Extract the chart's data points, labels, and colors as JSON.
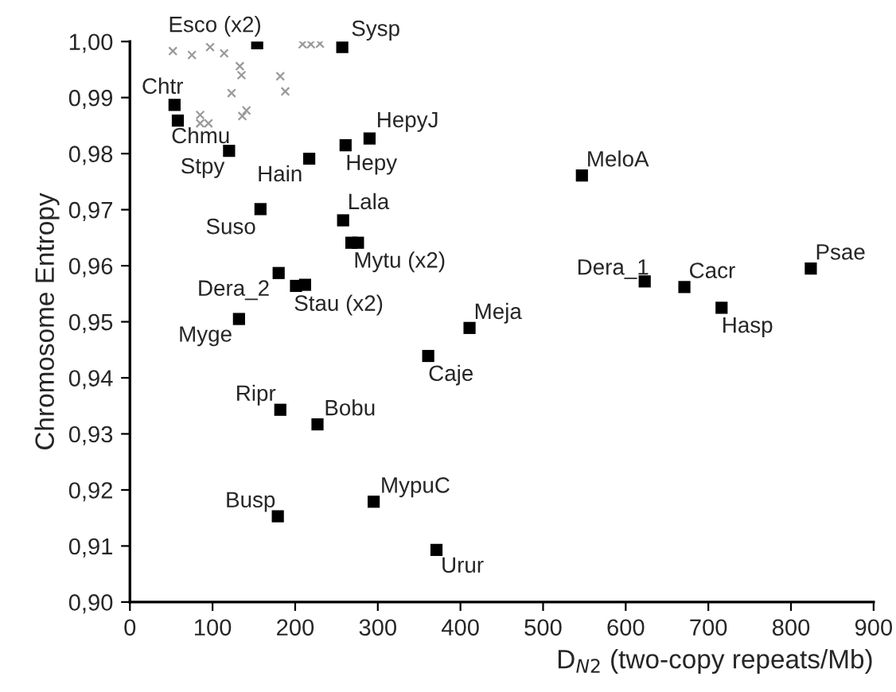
{
  "chart_data": {
    "type": "scatter",
    "xlabel": "D$_{N2}$ (two-copy repeats/Mb)",
    "ylabel": "Chromosome Entropy",
    "xlim": [
      0,
      900
    ],
    "xticks": [
      0,
      100,
      200,
      300,
      400,
      500,
      600,
      700,
      800,
      900
    ],
    "ylim": [
      0.9,
      1.0
    ],
    "yticks": [
      {
        "value": 0.9,
        "label": "0,90"
      },
      {
        "value": 0.91,
        "label": "0,91"
      },
      {
        "value": 0.92,
        "label": "0,92"
      },
      {
        "value": 0.93,
        "label": "0,93"
      },
      {
        "value": 0.94,
        "label": "0,94"
      },
      {
        "value": 0.95,
        "label": "0,95"
      },
      {
        "value": 0.96,
        "label": "0,96"
      },
      {
        "value": 0.97,
        "label": "0,97"
      },
      {
        "value": 0.98,
        "label": "0,98"
      },
      {
        "value": 0.99,
        "label": "0,99"
      },
      {
        "value": 1.0,
        "label": "1,00"
      }
    ],
    "grid": false,
    "legend": false,
    "marker": "square",
    "series": [
      {
        "color": "#000000",
        "x": [
          154,
          257,
          54,
          58,
          120,
          217,
          261,
          290,
          158,
          258,
          268,
          276,
          180,
          201,
          212,
          132,
          182,
          227,
          179,
          295,
          371,
          361,
          411,
          547,
          623,
          671,
          716,
          824
        ],
        "values": [
          0.9997,
          0.999,
          0.9887,
          0.9859,
          0.9805,
          0.9791,
          0.9815,
          0.9827,
          0.9701,
          0.9681,
          0.9641,
          0.9641,
          0.9587,
          0.9564,
          0.9566,
          0.9505,
          0.9343,
          0.9317,
          0.9153,
          0.9179,
          0.9093,
          0.9439,
          0.9489,
          0.9761,
          0.9572,
          0.9562,
          0.9525,
          0.9595
        ]
      },
      {
        "color": "#999999",
        "marker": "cross",
        "x": [
          52,
          75,
          97,
          114,
          133,
          135,
          123,
          85,
          85,
          95,
          136,
          141,
          182,
          188,
          209,
          219,
          230
        ],
        "values": [
          0.9983,
          0.9976,
          0.999,
          0.9979,
          0.9956,
          0.994,
          0.9908,
          0.9869,
          0.9854,
          0.9854,
          0.9867,
          0.9877,
          0.9938,
          0.9911,
          0.9995,
          0.9995,
          0.9996
        ]
      }
    ],
    "annotations": [
      {
        "text": "Esco (x2)",
        "x": 154,
        "y": 0.9997
      },
      {
        "text": "Sysp",
        "x": 257,
        "y": 0.999
      },
      {
        "text": "Chtr",
        "x": 54,
        "y": 0.9887
      },
      {
        "text": "Chmu",
        "x": 58,
        "y": 0.9859
      },
      {
        "text": "Stpy",
        "x": 120,
        "y": 0.9805
      },
      {
        "text": "Hain",
        "x": 217,
        "y": 0.9791
      },
      {
        "text": "Hepy",
        "x": 261,
        "y": 0.9815
      },
      {
        "text": "HepyJ",
        "x": 290,
        "y": 0.9827
      },
      {
        "text": "Suso",
        "x": 158,
        "y": 0.9701
      },
      {
        "text": "Lala",
        "x": 258,
        "y": 0.9681
      },
      {
        "text": "Mytu (x2)",
        "x": 276,
        "y": 0.9641
      },
      {
        "text": "Dera_2",
        "x": 180,
        "y": 0.9587
      },
      {
        "text": "Stau (x2)",
        "x": 201,
        "y": 0.9564
      },
      {
        "text": "Myge",
        "x": 132,
        "y": 0.9505
      },
      {
        "text": "Ripr",
        "x": 182,
        "y": 0.9343
      },
      {
        "text": "Bobu",
        "x": 227,
        "y": 0.9317
      },
      {
        "text": "Busp",
        "x": 179,
        "y": 0.9153
      },
      {
        "text": "MypuC",
        "x": 295,
        "y": 0.9179
      },
      {
        "text": "Urur",
        "x": 371,
        "y": 0.9093
      },
      {
        "text": "Caje",
        "x": 361,
        "y": 0.9439
      },
      {
        "text": "Meja",
        "x": 411,
        "y": 0.9489
      },
      {
        "text": "MeloA",
        "x": 547,
        "y": 0.9761
      },
      {
        "text": "Dera_1",
        "x": 623,
        "y": 0.9572
      },
      {
        "text": "Cacr",
        "x": 671,
        "y": 0.9562
      },
      {
        "text": "Hasp",
        "x": 716,
        "y": 0.9525
      },
      {
        "text": "Psae",
        "x": 824,
        "y": 0.9595
      }
    ]
  }
}
